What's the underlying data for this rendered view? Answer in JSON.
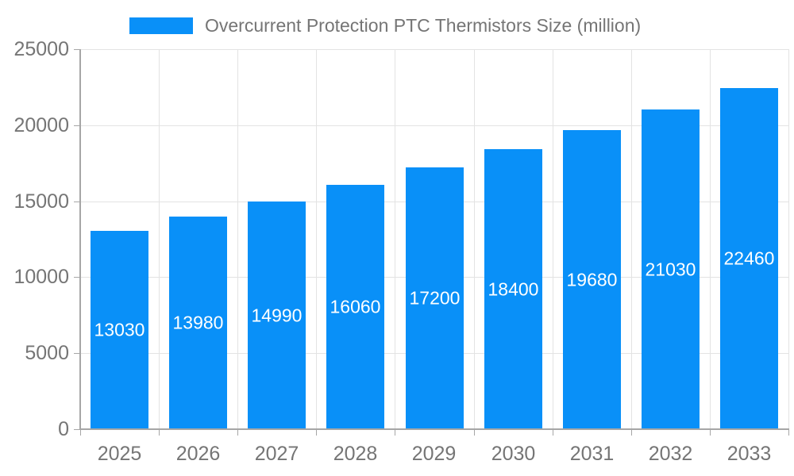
{
  "legend": {
    "label": "Overcurrent Protection PTC Thermistors Size (million)"
  },
  "colors": {
    "bar": "#0990f8",
    "legend_text": "#757575",
    "axis_text": "#757575",
    "grid_line": "#e3e3e3",
    "axis_line": "#a6a6a6",
    "tick_line": "#a6a6a6",
    "bar_label": "#ffffff",
    "background": "#ffffff"
  },
  "chart_data": {
    "type": "bar",
    "title": "Overcurrent Protection PTC Thermistors Size (million)",
    "categories": [
      "2025",
      "2026",
      "2027",
      "2028",
      "2029",
      "2030",
      "2031",
      "2032",
      "2033"
    ],
    "values": [
      13030,
      13980,
      14990,
      16060,
      17200,
      18400,
      19680,
      21030,
      22460
    ],
    "xlabel": "",
    "ylabel": "",
    "ylim": [
      0,
      25000
    ],
    "yticks": [
      0,
      5000,
      10000,
      15000,
      20000,
      25000
    ],
    "grid": true,
    "legend_position": "top",
    "value_labels": "inside-middle"
  }
}
